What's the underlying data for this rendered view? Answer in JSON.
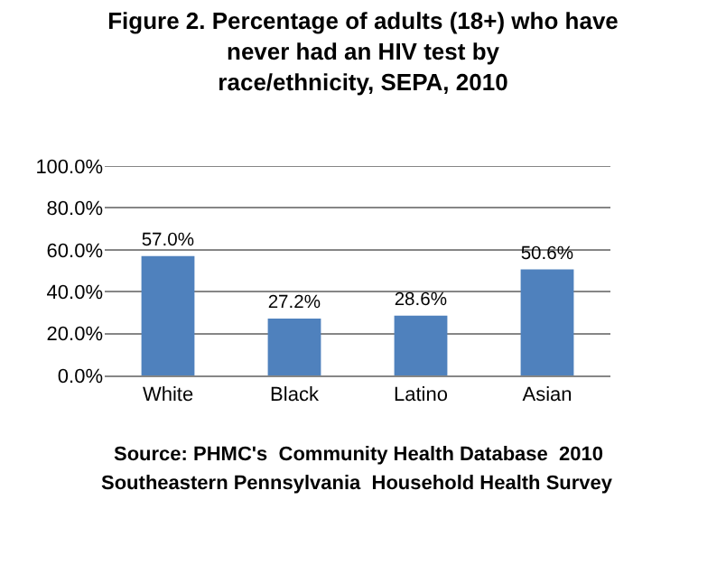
{
  "chart_data": {
    "type": "bar",
    "title": "Figure 2. Percentage of adults (18+) who have\nnever had an HIV test by\nrace/ethnicity, SEPA, 2010",
    "categories": [
      "White",
      "Black",
      "Latino",
      "Asian"
    ],
    "values": [
      57.0,
      27.2,
      28.6,
      50.6
    ],
    "value_labels": [
      "57.0%",
      "27.2%",
      "28.6%",
      "50.6%"
    ],
    "color": "#4f81bd",
    "ylim": [
      0,
      100
    ],
    "yticks": [
      {
        "value": 0,
        "label": "0.0%"
      },
      {
        "value": 20,
        "label": "20.0%"
      },
      {
        "value": 40,
        "label": "40.0%"
      },
      {
        "value": 60,
        "label": "60.0%"
      },
      {
        "value": 80,
        "label": "80.0%"
      },
      {
        "value": 100,
        "label": "100.0%"
      }
    ],
    "grid": "y",
    "annotations": [
      "Source: PHMC's  Community Health Database  2010",
      "Southeastern Pennsylvania  Household Health Survey"
    ]
  }
}
